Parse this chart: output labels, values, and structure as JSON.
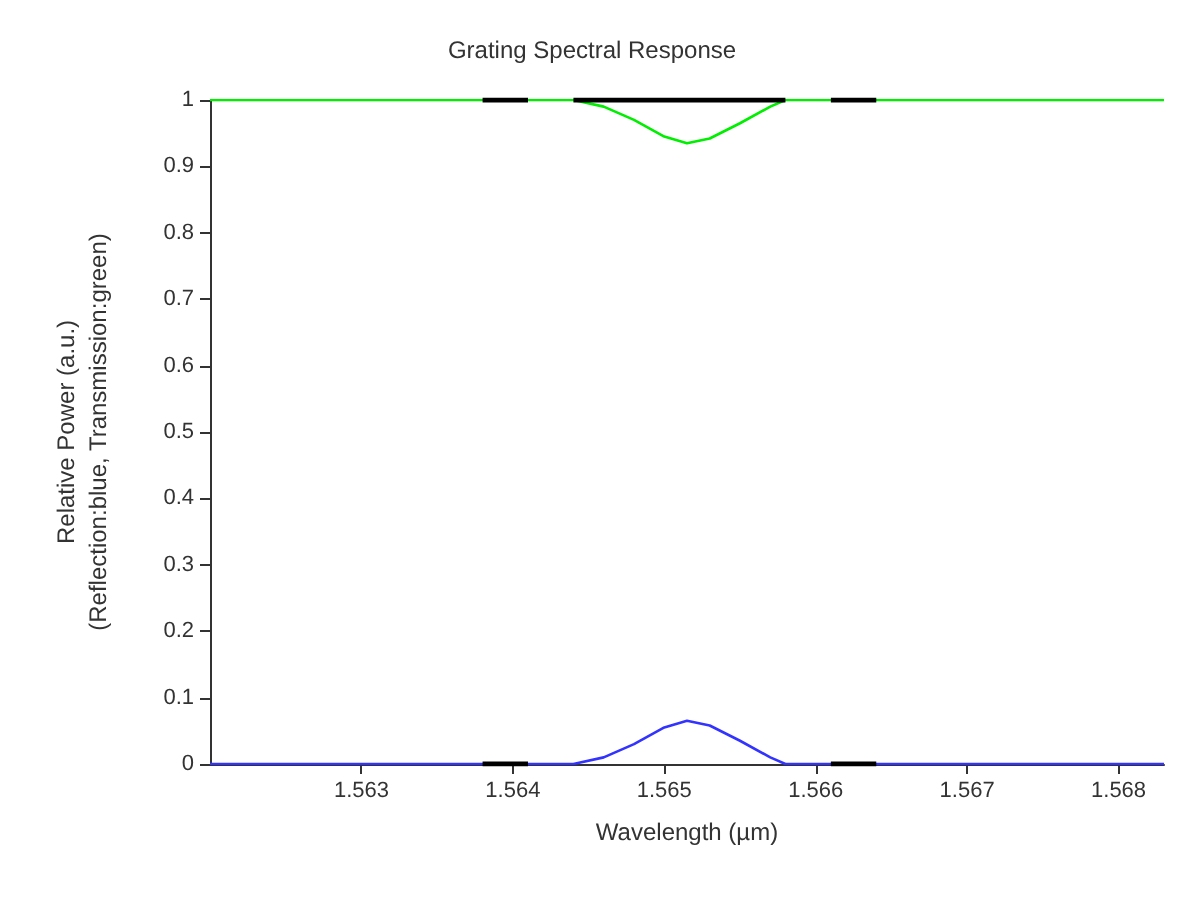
{
  "chart_data": {
    "type": "line",
    "title": "Grating Spectral Response",
    "xlabel": "Wavelength (µm)",
    "ylabel": "Relative Power (a.u.)\n(Reflection:blue, Transmission:green)",
    "xlim": [
      1.562,
      1.5683
    ],
    "xticks": [
      1.563,
      1.564,
      1.565,
      1.566,
      1.567,
      1.568
    ],
    "ylim": [
      0,
      1
    ],
    "yticks": [
      0,
      0.1,
      0.2,
      0.3,
      0.4,
      0.5,
      0.6,
      0.7,
      0.8,
      0.9,
      1
    ],
    "series": [
      {
        "color": "#00ee00",
        "x": [
          1.562,
          1.5644,
          1.5646,
          1.5648,
          1.565,
          1.56515,
          1.5653,
          1.5655,
          1.5657,
          1.5658,
          1.5683
        ],
        "values": [
          1,
          1,
          0.99,
          0.97,
          0.945,
          0.935,
          0.942,
          0.965,
          0.99,
          1,
          1
        ]
      },
      {
        "color": "#3333ff",
        "x": [
          1.562,
          1.5644,
          1.5646,
          1.5648,
          1.565,
          1.56515,
          1.5653,
          1.5655,
          1.5657,
          1.5658,
          1.5683
        ],
        "values": [
          0,
          0,
          0.01,
          0.03,
          0.055,
          0.065,
          0.058,
          0.035,
          0.01,
          0,
          0
        ]
      },
      {
        "color": "#000000",
        "x": [
          1.5638,
          1.5641,
          1.5642,
          1.5644,
          1.5658,
          1.5659,
          1.5661,
          1.5664
        ],
        "values": [
          1,
          1,
          null,
          1,
          1,
          null,
          1,
          1
        ]
      },
      {
        "color": "#000000",
        "x": [
          1.5638,
          1.5641,
          1.5642,
          1.5661,
          1.5664
        ],
        "values": [
          0,
          0,
          null,
          0,
          0
        ]
      }
    ],
    "grid": false,
    "marker": "none",
    "line_style": "solid"
  }
}
